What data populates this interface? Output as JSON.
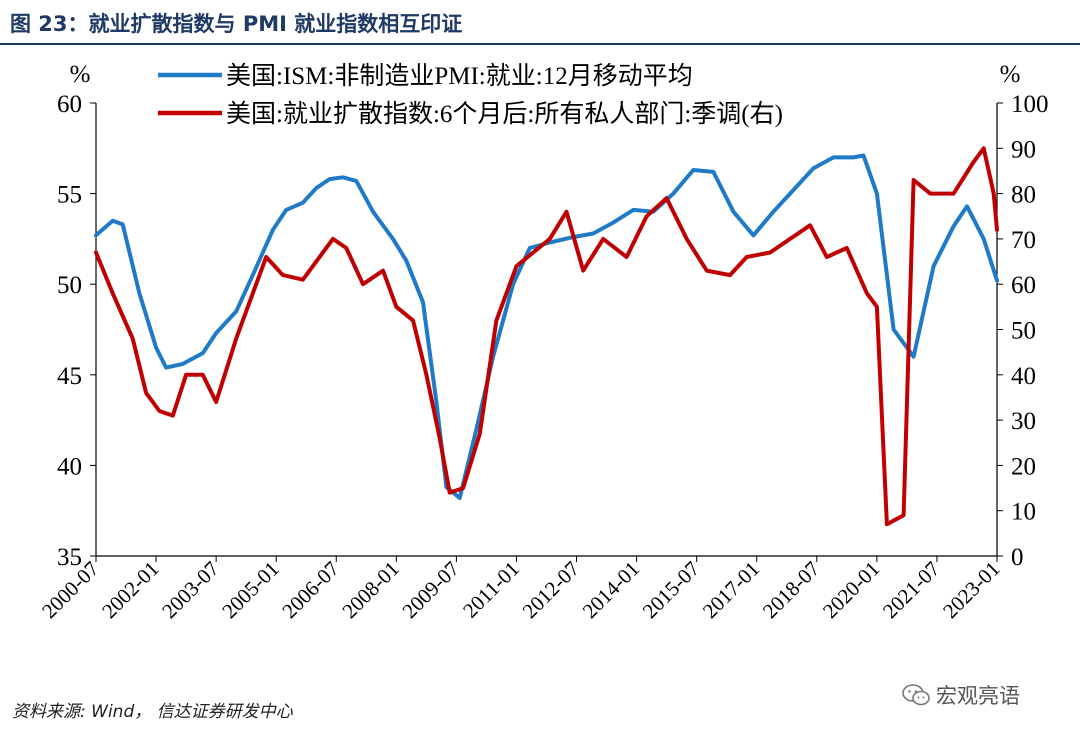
{
  "figure_title": "图  23：就业扩散指数与 PMI 就业指数相互印证",
  "source": "资料来源: Wind，  信达证券研发中心",
  "watermark": "宏观亮语",
  "colors": {
    "title": "#1f3a66",
    "series_blue": "#1f7ac8",
    "series_red": "#c00000"
  },
  "chart_data": {
    "type": "line",
    "title": "",
    "xlabel": "",
    "left_axis": {
      "unit": "%",
      "ylim": [
        35,
        60
      ],
      "ticks": [
        35,
        40,
        45,
        50,
        55,
        60
      ]
    },
    "right_axis": {
      "unit": "%",
      "ylim": [
        0,
        100
      ],
      "ticks": [
        0,
        10,
        20,
        30,
        40,
        50,
        60,
        70,
        80,
        90,
        100
      ]
    },
    "x_ticks": [
      "2000-07",
      "2002-01",
      "2003-07",
      "2005-01",
      "2006-07",
      "2008-01",
      "2009-07",
      "2011-01",
      "2012-07",
      "2014-01",
      "2015-07",
      "2017-01",
      "2018-07",
      "2020-01",
      "2021-07",
      "2023-01"
    ],
    "legend_position": "top",
    "series": [
      {
        "name": "美国:ISM:非制造业PMI:就业:12月移动平均",
        "axis": "left",
        "color": "#1f7ac8",
        "points": [
          [
            "2000-07",
            52.7
          ],
          [
            "2000-12",
            53.5
          ],
          [
            "2001-03",
            53.3
          ],
          [
            "2001-08",
            49.5
          ],
          [
            "2002-01",
            46.5
          ],
          [
            "2002-04",
            45.4
          ],
          [
            "2002-09",
            45.6
          ],
          [
            "2003-03",
            46.2
          ],
          [
            "2003-07",
            47.3
          ],
          [
            "2004-01",
            48.5
          ],
          [
            "2004-06",
            50.5
          ],
          [
            "2004-12",
            53.0
          ],
          [
            "2005-04",
            54.1
          ],
          [
            "2005-09",
            54.5
          ],
          [
            "2006-01",
            55.3
          ],
          [
            "2006-05",
            55.8
          ],
          [
            "2006-09",
            55.9
          ],
          [
            "2007-01",
            55.7
          ],
          [
            "2007-06",
            54.0
          ],
          [
            "2007-12",
            52.5
          ],
          [
            "2008-04",
            51.3
          ],
          [
            "2008-09",
            49.0
          ],
          [
            "2009-01",
            43.5
          ],
          [
            "2009-04",
            38.8
          ],
          [
            "2009-08",
            38.2
          ],
          [
            "2010-01",
            42.0
          ],
          [
            "2010-06",
            46.0
          ],
          [
            "2010-12",
            50.0
          ],
          [
            "2011-05",
            52.0
          ],
          [
            "2011-11",
            52.3
          ],
          [
            "2012-06",
            52.6
          ],
          [
            "2012-12",
            52.8
          ],
          [
            "2013-06",
            53.4
          ],
          [
            "2013-12",
            54.1
          ],
          [
            "2014-06",
            54.0
          ],
          [
            "2014-12",
            55.0
          ],
          [
            "2015-06",
            56.3
          ],
          [
            "2015-12",
            56.2
          ],
          [
            "2016-06",
            54.0
          ],
          [
            "2016-12",
            52.7
          ],
          [
            "2017-06",
            54.0
          ],
          [
            "2017-12",
            55.2
          ],
          [
            "2018-06",
            56.4
          ],
          [
            "2018-12",
            57.0
          ],
          [
            "2019-06",
            57.0
          ],
          [
            "2019-09",
            57.1
          ],
          [
            "2020-01",
            55.0
          ],
          [
            "2020-06",
            47.5
          ],
          [
            "2020-12",
            46.0
          ],
          [
            "2021-06",
            51.0
          ],
          [
            "2021-12",
            53.2
          ],
          [
            "2022-04",
            54.3
          ],
          [
            "2022-09",
            52.5
          ],
          [
            "2023-01",
            50.2
          ]
        ]
      },
      {
        "name": "美国:就业扩散指数:6个月后:所有私人部门:季调(右)",
        "axis": "right",
        "color": "#c00000",
        "points": [
          [
            "2000-07",
            67
          ],
          [
            "2000-12",
            58
          ],
          [
            "2001-06",
            48
          ],
          [
            "2001-10",
            36
          ],
          [
            "2002-02",
            32
          ],
          [
            "2002-06",
            31
          ],
          [
            "2002-10",
            40
          ],
          [
            "2003-03",
            40
          ],
          [
            "2003-07",
            34
          ],
          [
            "2004-01",
            48
          ],
          [
            "2004-06",
            58
          ],
          [
            "2004-10",
            66
          ],
          [
            "2005-03",
            62
          ],
          [
            "2005-09",
            61
          ],
          [
            "2006-01",
            65
          ],
          [
            "2006-06",
            70
          ],
          [
            "2006-10",
            68
          ],
          [
            "2007-03",
            60
          ],
          [
            "2007-09",
            63
          ],
          [
            "2008-01",
            55
          ],
          [
            "2008-06",
            52
          ],
          [
            "2008-10",
            40
          ],
          [
            "2009-02",
            26
          ],
          [
            "2009-05",
            14
          ],
          [
            "2009-09",
            15
          ],
          [
            "2010-02",
            27
          ],
          [
            "2010-07",
            52
          ],
          [
            "2011-01",
            64
          ],
          [
            "2011-06",
            67
          ],
          [
            "2011-11",
            70
          ],
          [
            "2012-04",
            76
          ],
          [
            "2012-09",
            63
          ],
          [
            "2013-03",
            70
          ],
          [
            "2013-10",
            66
          ],
          [
            "2014-04",
            75
          ],
          [
            "2014-10",
            79
          ],
          [
            "2015-04",
            70
          ],
          [
            "2015-10",
            63
          ],
          [
            "2016-05",
            62
          ],
          [
            "2016-10",
            66
          ],
          [
            "2017-05",
            67
          ],
          [
            "2017-11",
            70
          ],
          [
            "2018-05",
            73
          ],
          [
            "2018-10",
            66
          ],
          [
            "2019-04",
            68
          ],
          [
            "2019-10",
            58
          ],
          [
            "2020-01",
            55
          ],
          [
            "2020-04",
            7
          ],
          [
            "2020-09",
            9
          ],
          [
            "2020-12",
            83
          ],
          [
            "2021-05",
            80
          ],
          [
            "2021-12",
            80
          ],
          [
            "2022-06",
            87
          ],
          [
            "2022-09",
            90
          ],
          [
            "2022-12",
            80
          ],
          [
            "2023-01",
            72
          ]
        ]
      }
    ]
  }
}
